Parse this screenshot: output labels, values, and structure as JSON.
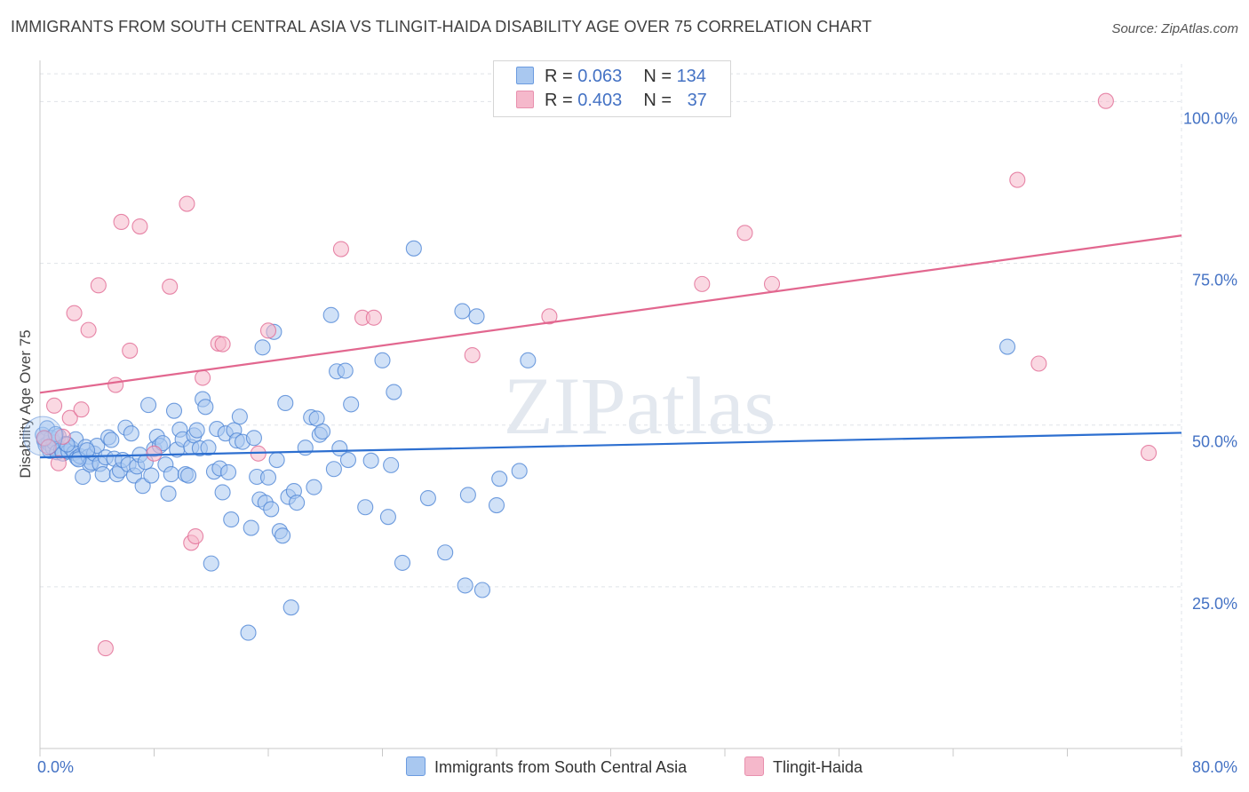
{
  "title": "IMMIGRANTS FROM SOUTH CENTRAL ASIA VS TLINGIT-HAIDA DISABILITY AGE OVER 75 CORRELATION CHART",
  "source": "Source: ZipAtlas.com",
  "watermark": "ZIPatlas",
  "stats": [
    {
      "r_label": "R = ",
      "r_value": "0.063",
      "n_label": "N = ",
      "n_value": "134",
      "color": "#a9c8f0"
    },
    {
      "r_label": "R = ",
      "r_value": "0.403",
      "n_label": "N = ",
      "n_value": "37",
      "color": "#f5b8cb"
    }
  ],
  "legend": [
    {
      "label": "Immigrants from South Central Asia",
      "color": "#a9c8f0"
    },
    {
      "label": "Tlingit-Haida",
      "color": "#f5b8cb"
    }
  ],
  "chart_data": {
    "type": "scatter",
    "ylabel": "Disability Age Over 75",
    "xlim": [
      0,
      80
    ],
    "ylim": [
      0,
      105
    ],
    "x_tick_labels": [
      {
        "value": 0,
        "label": "0.0%"
      },
      {
        "value": 80,
        "label": "80.0%"
      }
    ],
    "y_tick_labels": [
      {
        "value": 25,
        "label": "25.0%"
      },
      {
        "value": 50,
        "label": "50.0%"
      },
      {
        "value": 75,
        "label": "75.0%"
      },
      {
        "value": 100,
        "label": "100.0%"
      }
    ],
    "series": [
      {
        "name": "Immigrants from South Central Asia",
        "color": "#4f86d6",
        "fill": "#a9c8f0",
        "trend": {
          "x": [
            0,
            80
          ],
          "y": [
            45.0,
            48.8
          ]
        },
        "points": [
          [
            0.2,
            48.5
          ],
          [
            0.3,
            47.6
          ],
          [
            0.4,
            46.9
          ],
          [
            0.5,
            49.5
          ],
          [
            0.6,
            47.2
          ],
          [
            0.7,
            46.0
          ],
          [
            0.8,
            48.0
          ],
          [
            0.9,
            46.5
          ],
          [
            1.0,
            47.3
          ],
          [
            1.2,
            45.8
          ],
          [
            1.3,
            48.3
          ],
          [
            1.5,
            46.2
          ],
          [
            1.6,
            45.6
          ],
          [
            1.8,
            47.1
          ],
          [
            2.0,
            45.9
          ],
          [
            2.2,
            46.4
          ],
          [
            2.4,
            45.7
          ],
          [
            2.5,
            47.8
          ],
          [
            2.6,
            44.9
          ],
          [
            2.8,
            45.2
          ],
          [
            3.0,
            42.0
          ],
          [
            3.2,
            46.6
          ],
          [
            3.4,
            45.1
          ],
          [
            3.5,
            43.9
          ],
          [
            3.6,
            44.2
          ],
          [
            3.8,
            45.6
          ],
          [
            4.0,
            46.8
          ],
          [
            4.2,
            44.0
          ],
          [
            4.4,
            42.4
          ],
          [
            4.6,
            45.0
          ],
          [
            4.8,
            48.1
          ],
          [
            5.0,
            47.7
          ],
          [
            5.2,
            44.8
          ],
          [
            5.4,
            42.4
          ],
          [
            5.6,
            43.0
          ],
          [
            5.8,
            44.6
          ],
          [
            6.0,
            49.6
          ],
          [
            6.2,
            43.9
          ],
          [
            6.4,
            48.7
          ],
          [
            6.6,
            42.2
          ],
          [
            6.8,
            43.6
          ],
          [
            7.0,
            45.4
          ],
          [
            7.2,
            40.6
          ],
          [
            7.4,
            44.3
          ],
          [
            7.6,
            53.1
          ],
          [
            7.8,
            42.2
          ],
          [
            8.0,
            46.3
          ],
          [
            8.2,
            48.2
          ],
          [
            8.4,
            46.8
          ],
          [
            8.6,
            47.2
          ],
          [
            8.8,
            43.9
          ],
          [
            9.0,
            39.4
          ],
          [
            9.2,
            42.4
          ],
          [
            9.4,
            52.2
          ],
          [
            9.6,
            46.2
          ],
          [
            9.8,
            49.3
          ],
          [
            10.0,
            47.8
          ],
          [
            10.2,
            42.4
          ],
          [
            10.4,
            42.2
          ],
          [
            10.6,
            46.6
          ],
          [
            10.8,
            48.4
          ],
          [
            11.0,
            49.2
          ],
          [
            11.2,
            46.4
          ],
          [
            11.4,
            54.0
          ],
          [
            11.6,
            52.8
          ],
          [
            11.8,
            46.5
          ],
          [
            12.0,
            28.6
          ],
          [
            12.2,
            42.8
          ],
          [
            12.4,
            49.4
          ],
          [
            12.6,
            43.3
          ],
          [
            12.8,
            39.6
          ],
          [
            13.0,
            48.7
          ],
          [
            13.2,
            42.7
          ],
          [
            13.4,
            35.4
          ],
          [
            13.6,
            49.2
          ],
          [
            13.8,
            47.6
          ],
          [
            14.0,
            51.3
          ],
          [
            14.2,
            47.4
          ],
          [
            14.6,
            17.9
          ],
          [
            14.8,
            34.1
          ],
          [
            15.0,
            48.0
          ],
          [
            15.2,
            42.0
          ],
          [
            15.4,
            38.5
          ],
          [
            15.6,
            62.0
          ],
          [
            15.8,
            38.0
          ],
          [
            16.0,
            41.9
          ],
          [
            16.2,
            37.0
          ],
          [
            16.4,
            64.4
          ],
          [
            16.6,
            44.6
          ],
          [
            16.8,
            33.6
          ],
          [
            17.0,
            32.9
          ],
          [
            17.2,
            53.4
          ],
          [
            17.4,
            38.9
          ],
          [
            17.6,
            21.8
          ],
          [
            17.8,
            39.8
          ],
          [
            18.0,
            38.0
          ],
          [
            18.6,
            46.5
          ],
          [
            19.0,
            51.2
          ],
          [
            19.2,
            40.4
          ],
          [
            19.4,
            51.0
          ],
          [
            19.6,
            48.5
          ],
          [
            19.8,
            49.0
          ],
          [
            20.4,
            67.0
          ],
          [
            20.6,
            43.2
          ],
          [
            20.8,
            58.3
          ],
          [
            21.0,
            46.4
          ],
          [
            21.4,
            58.4
          ],
          [
            21.6,
            44.6
          ],
          [
            21.8,
            53.2
          ],
          [
            22.8,
            37.3
          ],
          [
            23.2,
            44.5
          ],
          [
            24.0,
            60.0
          ],
          [
            24.4,
            35.8
          ],
          [
            24.6,
            43.8
          ],
          [
            24.8,
            55.1
          ],
          [
            25.4,
            28.7
          ],
          [
            26.2,
            77.3
          ],
          [
            27.2,
            38.7
          ],
          [
            28.4,
            30.3
          ],
          [
            29.6,
            67.6
          ],
          [
            29.8,
            25.2
          ],
          [
            30.0,
            39.2
          ],
          [
            30.6,
            66.8
          ],
          [
            31.0,
            24.5
          ],
          [
            32.0,
            37.6
          ],
          [
            32.2,
            41.7
          ],
          [
            33.6,
            42.9
          ],
          [
            34.2,
            60.0
          ],
          [
            67.8,
            62.1
          ],
          [
            0.3,
            47.9
          ],
          [
            1.1,
            48.6
          ],
          [
            1.9,
            47.0
          ],
          [
            2.7,
            44.7
          ],
          [
            3.3,
            46.1
          ]
        ]
      },
      {
        "name": "Tlingit-Haida",
        "color": "#e16a94",
        "fill": "#f5b8cb",
        "trend": {
          "x": [
            0,
            80
          ],
          "y": [
            55.0,
            79.3
          ]
        },
        "points": [
          [
            0.3,
            48.0
          ],
          [
            0.6,
            46.6
          ],
          [
            1.0,
            53.0
          ],
          [
            1.3,
            44.1
          ],
          [
            1.6,
            48.2
          ],
          [
            2.1,
            51.1
          ],
          [
            2.4,
            67.3
          ],
          [
            2.9,
            52.4
          ],
          [
            3.4,
            64.7
          ],
          [
            4.1,
            71.6
          ],
          [
            4.6,
            15.5
          ],
          [
            5.3,
            56.2
          ],
          [
            5.7,
            81.4
          ],
          [
            6.3,
            61.5
          ],
          [
            7.0,
            80.7
          ],
          [
            8.0,
            45.6
          ],
          [
            9.1,
            71.4
          ],
          [
            10.3,
            84.2
          ],
          [
            10.6,
            31.8
          ],
          [
            10.9,
            32.8
          ],
          [
            11.4,
            57.3
          ],
          [
            12.5,
            62.6
          ],
          [
            12.8,
            62.5
          ],
          [
            15.3,
            45.6
          ],
          [
            16.0,
            64.6
          ],
          [
            21.1,
            77.2
          ],
          [
            22.6,
            66.6
          ],
          [
            23.4,
            66.6
          ],
          [
            30.3,
            60.8
          ],
          [
            35.7,
            66.8
          ],
          [
            46.4,
            71.8
          ],
          [
            49.4,
            79.7
          ],
          [
            51.3,
            71.8
          ],
          [
            68.5,
            87.9
          ],
          [
            70.0,
            59.5
          ],
          [
            74.7,
            100.1
          ],
          [
            77.7,
            45.7
          ]
        ]
      }
    ]
  }
}
